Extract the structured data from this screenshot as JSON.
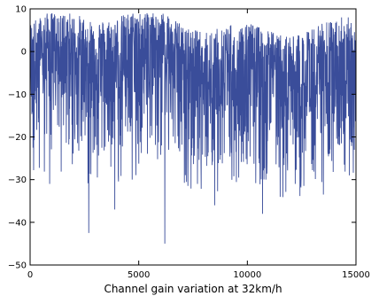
{
  "chart_data": {
    "type": "line",
    "title": "",
    "xlabel": "Channel gain variation at 32km/h",
    "ylabel": "",
    "xlim": [
      0,
      15000
    ],
    "ylim": [
      -50,
      10
    ],
    "x_ticks": [
      0,
      5000,
      10000,
      15000
    ],
    "x_tick_labels": [
      "0",
      "5000",
      "10000",
      "15000"
    ],
    "y_ticks": [
      -50,
      -40,
      -30,
      -20,
      -10,
      0,
      10
    ],
    "y_tick_labels": [
      "−50",
      "−40",
      "−30",
      "−20",
      "−10",
      "0",
      "10"
    ],
    "grid": false,
    "legend": "none",
    "series": [
      {
        "color": "#3a4d9a",
        "sample_count": 15000,
        "mean_db": -5,
        "upper_envelope_db": 9,
        "typical_lower_db": -25,
        "deep_fades": [
          {
            "x": 2700,
            "y": -42.5
          },
          {
            "x": 3900,
            "y": -37
          },
          {
            "x": 6200,
            "y": -45
          },
          {
            "x": 8500,
            "y": -36
          },
          {
            "x": 10700,
            "y": -38
          },
          {
            "x": 13500,
            "y": -33.5
          },
          {
            "x": 900,
            "y": -31
          },
          {
            "x": 4700,
            "y": -30
          },
          {
            "x": 7700,
            "y": -31
          },
          {
            "x": 12200,
            "y": -31
          },
          {
            "x": 14700,
            "y": -29
          }
        ]
      }
    ]
  }
}
